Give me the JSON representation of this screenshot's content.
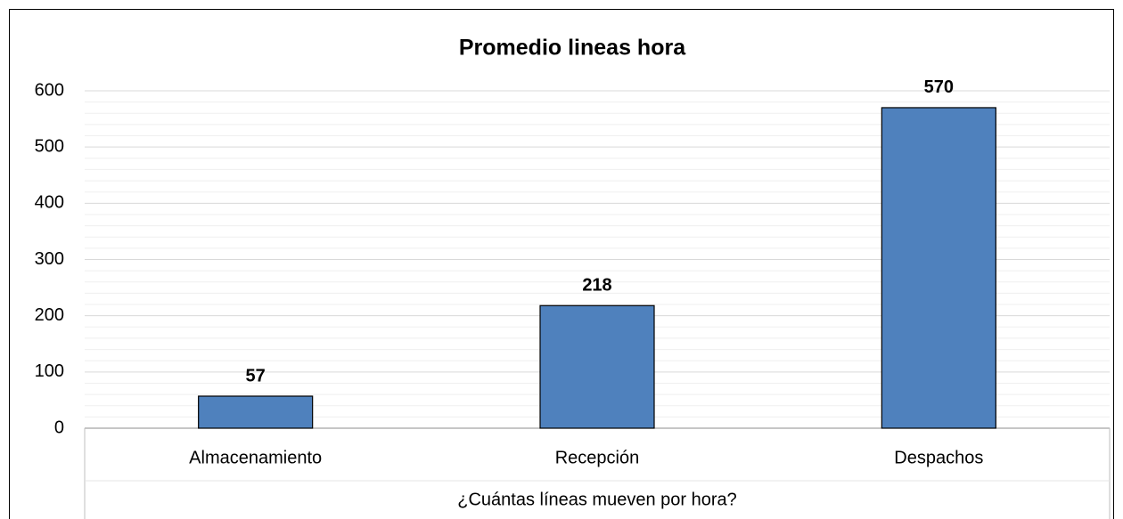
{
  "chart_data": {
    "type": "bar",
    "title": "Promedio lineas hora",
    "x_label": "¿Cuántas líneas mueven por hora?",
    "categories": [
      "Almacenamiento",
      "Recepción",
      "Despachos"
    ],
    "values": [
      57,
      218,
      570
    ],
    "color": "#4f81bd",
    "ylim": [
      0,
      600
    ],
    "yticks": [
      0,
      100,
      200,
      300,
      400,
      500,
      600
    ],
    "grid": true,
    "minor_grid": true
  }
}
